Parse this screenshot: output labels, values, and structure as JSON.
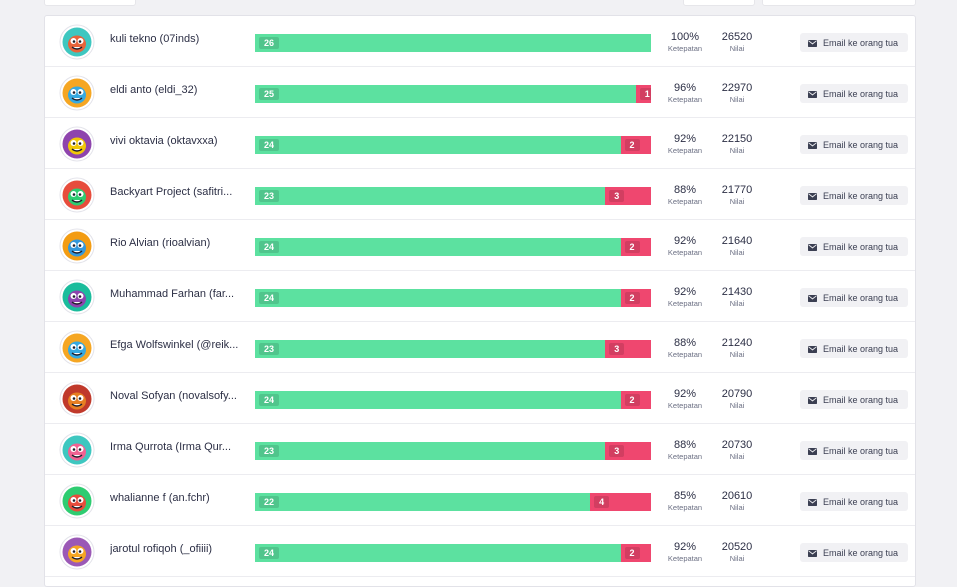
{
  "ui": {
    "accuracy_label": "Ketepatan",
    "score_label": "Nilai",
    "email_button_label": "Email ke orang tua",
    "total_questions": 26
  },
  "players": [
    {
      "name": "kuli tekno (07inds)",
      "correct": 26,
      "incorrect": 0,
      "accuracy": "100%",
      "score": "26520",
      "avatar_bg": "#3ec7c0",
      "monster": "#e8633a"
    },
    {
      "name": "eldi anto (eldi_32)",
      "correct": 25,
      "incorrect": 1,
      "accuracy": "96%",
      "score": "22970",
      "avatar_bg": "#f5a623",
      "monster": "#36a9e1"
    },
    {
      "name": "vivi oktavia (oktavxxa)",
      "correct": 24,
      "incorrect": 2,
      "accuracy": "92%",
      "score": "22150",
      "avatar_bg": "#8e44ad",
      "monster": "#f0c808"
    },
    {
      "name": "Backyart Project (safitri...",
      "correct": 23,
      "incorrect": 3,
      "accuracy": "88%",
      "score": "21770",
      "avatar_bg": "#e74c3c",
      "monster": "#2ecc71"
    },
    {
      "name": "Rio Alvian (rioalvian)",
      "correct": 24,
      "incorrect": 2,
      "accuracy": "92%",
      "score": "21640",
      "avatar_bg": "#f39c12",
      "monster": "#3498db"
    },
    {
      "name": "Muhammad Farhan (far...",
      "correct": 24,
      "incorrect": 2,
      "accuracy": "92%",
      "score": "21430",
      "avatar_bg": "#1abc9c",
      "monster": "#8e44ad"
    },
    {
      "name": "Efga Wolfswinkel (@reik...",
      "correct": 23,
      "incorrect": 3,
      "accuracy": "88%",
      "score": "21240",
      "avatar_bg": "#f5a623",
      "monster": "#36a9e1"
    },
    {
      "name": "Noval Sofyan (novalsofy...",
      "correct": 24,
      "incorrect": 2,
      "accuracy": "92%",
      "score": "20790",
      "avatar_bg": "#c0392b",
      "monster": "#e67e22"
    },
    {
      "name": "Irma Qurrota (Irma Qur...",
      "correct": 23,
      "incorrect": 3,
      "accuracy": "88%",
      "score": "20730",
      "avatar_bg": "#3ec7c0",
      "monster": "#f06292"
    },
    {
      "name": "whalianne f (an.fchr)",
      "correct": 22,
      "incorrect": 4,
      "accuracy": "85%",
      "score": "20610",
      "avatar_bg": "#2ecc71",
      "monster": "#e74c3c"
    },
    {
      "name": "jarotul rofiqoh (_ofiiii)",
      "correct": 24,
      "incorrect": 2,
      "accuracy": "92%",
      "score": "20520",
      "avatar_bg": "#9b59b6",
      "monster": "#f5a623"
    }
  ]
}
